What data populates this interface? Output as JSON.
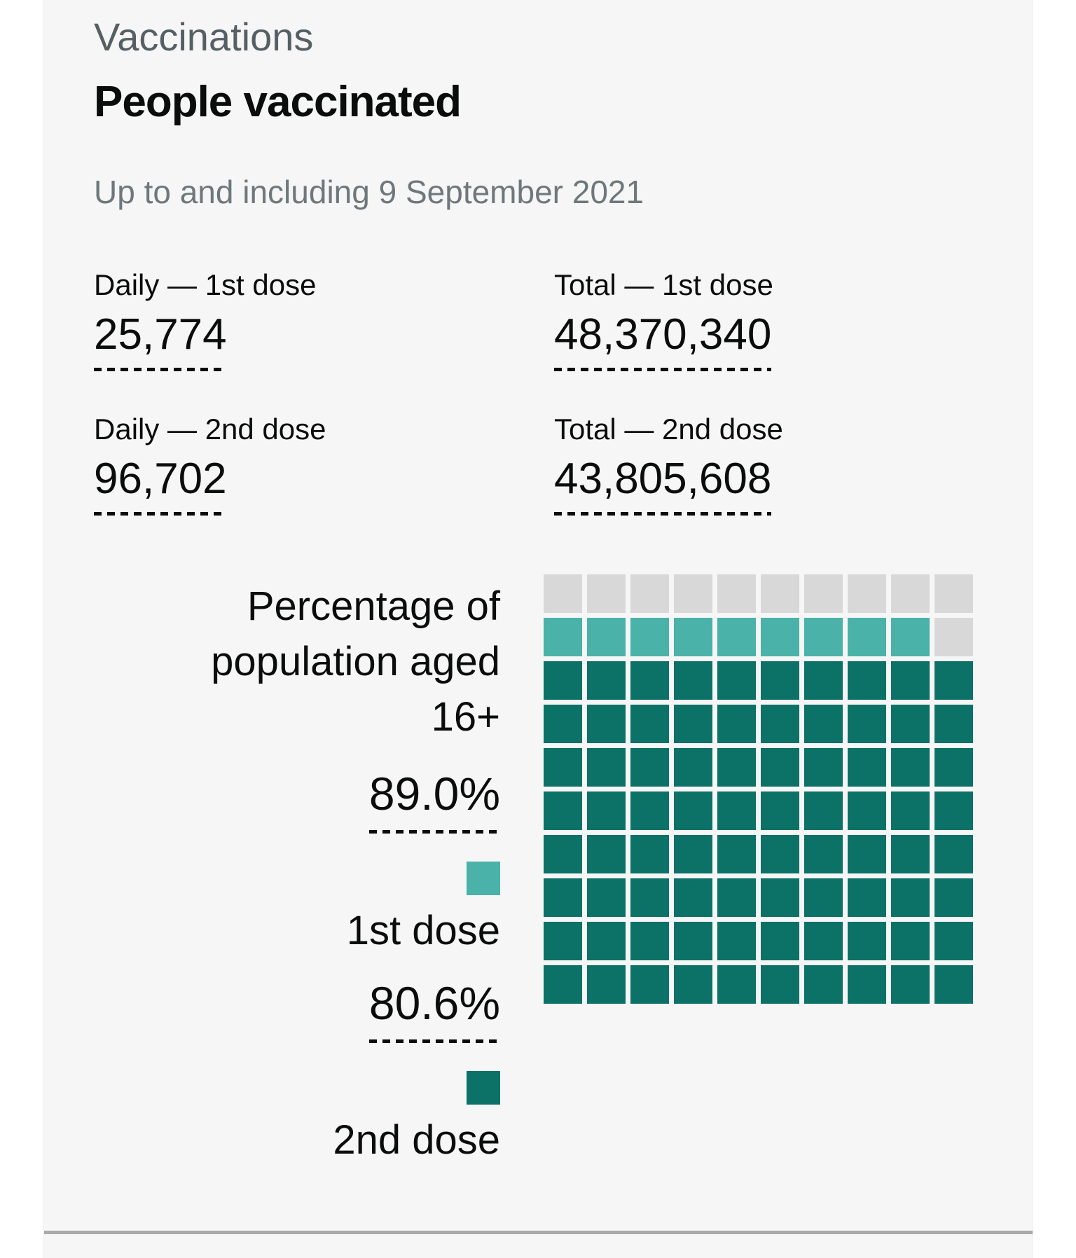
{
  "header": {
    "section_label": "Vaccinations",
    "title": "People vaccinated",
    "date_caption": "Up to and including 9 September 2021"
  },
  "stats": [
    {
      "label": "Daily — 1st dose",
      "value": "25,774"
    },
    {
      "label": "Total — 1st dose",
      "value": "48,370,340"
    },
    {
      "label": "Daily — 2nd dose",
      "value": "96,702"
    },
    {
      "label": "Total — 2nd dose",
      "value": "43,805,608"
    }
  ],
  "chart_data": {
    "type": "waffle",
    "title": "Percentage of population aged 16+",
    "grid": {
      "rows": 10,
      "cols": 10,
      "cell_unit_pct": 1
    },
    "series": [
      {
        "name": "1st dose",
        "value_pct": 89.0,
        "label": "89.0%",
        "color": "#4AB2A8"
      },
      {
        "name": "2nd dose",
        "value_pct": 80.6,
        "label": "80.6%",
        "color": "#0C7167"
      }
    ],
    "empty_color": "#D8D8D8",
    "legend_position": "left",
    "fill_order": "bottom-to-top, left-to-right",
    "notes": "80 full dark-teal cells (2nd dose), 9 light-teal cells in second row from top (1st dose), 11 grey cells remaining"
  },
  "colors": {
    "card_background": "#f6f6f6",
    "heading_grey": "#566064",
    "caption_grey": "#6e787c",
    "text_black": "#0b0c0c",
    "divider_grey": "#a9a9a9"
  }
}
